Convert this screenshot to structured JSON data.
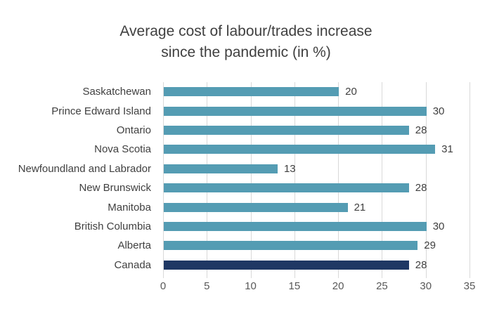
{
  "chart": {
    "title": {
      "line1": "Average cost of labour/trades increase",
      "line2": "since the pandemic (in %)"
    }
  },
  "chart_data": {
    "type": "bar",
    "orientation": "horizontal",
    "title": "Average cost of labour/trades increase since the pandemic (in %)",
    "categories": [
      "Saskatchewan",
      "Prince Edward Island",
      "Ontario",
      "Nova Scotia",
      "Newfoundland and Labrador",
      "New Brunswick",
      "Manitoba",
      "British Columbia",
      "Alberta",
      "Canada"
    ],
    "values": [
      20,
      30,
      28,
      31,
      13,
      28,
      21,
      30,
      29,
      28
    ],
    "xlim": [
      0,
      35
    ],
    "x_ticks": [
      0,
      5,
      10,
      15,
      20,
      25,
      30,
      35
    ],
    "grid": true,
    "data_labels": true,
    "legend": "none",
    "bar_color": "#549CB3",
    "highlight_category": "Canada",
    "highlight_color": "#1F3864",
    "title_color": "#404040",
    "label_color": "#404040",
    "axis_text_color": "#595959",
    "gridline_color": "#D9D9D9",
    "background": "#FFFFFF"
  }
}
